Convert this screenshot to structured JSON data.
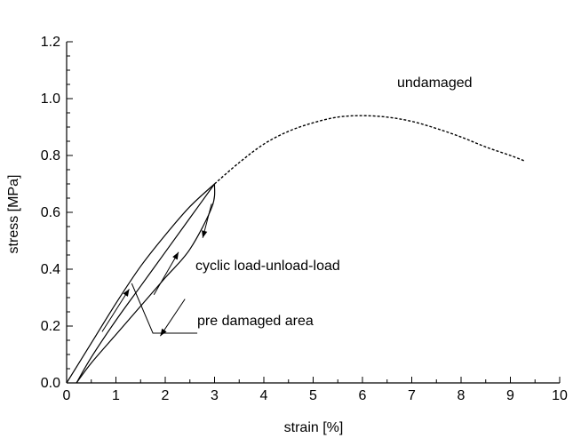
{
  "chart_data": {
    "type": "line",
    "xlabel": "strain [%]",
    "ylabel": "stress [MPa]",
    "xlim": [
      0,
      10
    ],
    "ylim": [
      0,
      1.2
    ],
    "x_ticks": [
      0,
      1,
      2,
      3,
      4,
      5,
      6,
      7,
      8,
      9,
      10
    ],
    "y_ticks": [
      0.0,
      0.2,
      0.4,
      0.6,
      0.8,
      1.0,
      1.2
    ],
    "x_tick_labels": [
      "0",
      "1",
      "2",
      "3",
      "4",
      "5",
      "6",
      "7",
      "8",
      "9",
      "10"
    ],
    "y_tick_labels": [
      "0.0",
      "0.2",
      "0.4",
      "0.6",
      "0.8",
      "1.0",
      "1.2"
    ],
    "grid": false,
    "series": [
      {
        "style": "solid",
        "description_key": "initial-loading",
        "x": [
          0,
          0.5,
          1.0,
          1.5,
          2.0,
          2.5,
          3.0
        ],
        "y": [
          0,
          0.14,
          0.28,
          0.41,
          0.52,
          0.62,
          0.7
        ]
      },
      {
        "style": "solid",
        "description_key": "unloading",
        "x": [
          3.0,
          2.95,
          2.5,
          2.0,
          1.5,
          1.0,
          0.5,
          0.2
        ],
        "y": [
          0.7,
          0.62,
          0.47,
          0.37,
          0.27,
          0.17,
          0.07,
          0.0
        ]
      },
      {
        "style": "solid",
        "description_key": "reloading",
        "x": [
          0.2,
          0.5,
          1.0,
          1.5,
          2.0,
          2.5,
          3.0
        ],
        "y": [
          0.0,
          0.09,
          0.22,
          0.34,
          0.46,
          0.58,
          0.7
        ]
      },
      {
        "style": "dashed",
        "description_key": "undamaged",
        "x": [
          3.0,
          3.5,
          4.0,
          4.5,
          5.0,
          5.5,
          6.0,
          6.5,
          7.0,
          7.5,
          8.0,
          8.5,
          9.0,
          9.3
        ],
        "y": [
          0.7,
          0.775,
          0.84,
          0.885,
          0.915,
          0.935,
          0.94,
          0.935,
          0.92,
          0.895,
          0.865,
          0.83,
          0.8,
          0.78
        ]
      }
    ],
    "annotations": [
      {
        "text": "undamaged",
        "x": 6.6,
        "y": 0.99
      },
      {
        "text": "cyclic load-unload-load",
        "x": 2.6,
        "y": 0.31
      },
      {
        "text": "pre damaged area",
        "x": 2.6,
        "y": 0.17
      }
    ]
  }
}
